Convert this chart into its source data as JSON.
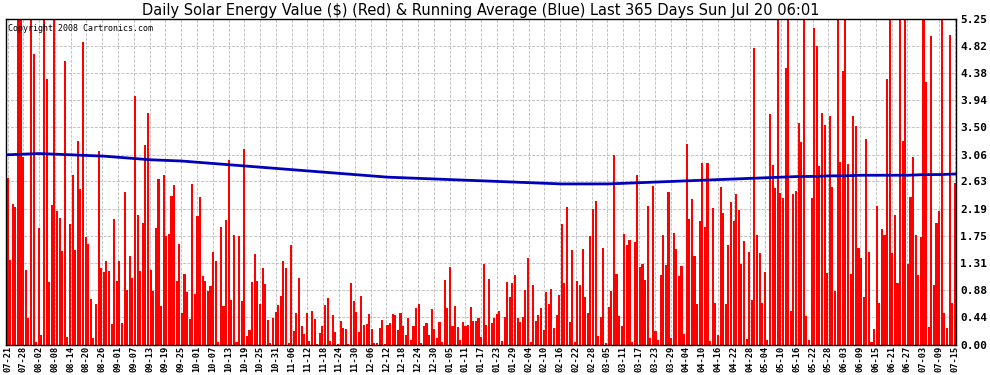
{
  "title": "Daily Solar Energy Value ($) (Red) & Running Average (Blue) Last 365 Days Sun Jul 20 06:01",
  "copyright_text": "Copyright 2008 Cartronics.com",
  "y_ticks": [
    0.0,
    0.44,
    0.88,
    1.31,
    1.75,
    2.19,
    2.63,
    3.06,
    3.5,
    3.94,
    4.38,
    4.82,
    5.25
  ],
  "y_max": 5.25,
  "bar_color": "#ff0000",
  "avg_color": "#0000bb",
  "background_color": "#ffffff",
  "grid_color": "#aaaaaa",
  "title_fontsize": 10.5,
  "x_labels": [
    "07-21",
    "07-28",
    "08-02",
    "08-08",
    "08-14",
    "08-20",
    "08-26",
    "09-01",
    "09-07",
    "09-13",
    "09-19",
    "09-25",
    "10-01",
    "10-07",
    "10-13",
    "10-19",
    "10-25",
    "10-31",
    "11-06",
    "11-12",
    "11-18",
    "11-24",
    "11-30",
    "12-06",
    "12-12",
    "12-18",
    "12-24",
    "12-30",
    "01-05",
    "01-11",
    "01-17",
    "01-23",
    "01-29",
    "02-04",
    "02-10",
    "02-16",
    "02-22",
    "02-28",
    "03-05",
    "03-11",
    "03-17",
    "03-23",
    "03-29",
    "04-04",
    "04-10",
    "04-16",
    "04-22",
    "04-28",
    "05-04",
    "05-10",
    "05-16",
    "05-22",
    "05-28",
    "06-03",
    "06-09",
    "06-15",
    "06-21",
    "06-27",
    "07-03",
    "07-09",
    "07-15"
  ],
  "avg_points": [
    3.06,
    3.07,
    3.08,
    3.07,
    3.06,
    3.05,
    3.04,
    3.02,
    3.0,
    2.98,
    2.97,
    2.96,
    2.94,
    2.92,
    2.9,
    2.88,
    2.86,
    2.84,
    2.82,
    2.8,
    2.78,
    2.76,
    2.74,
    2.72,
    2.7,
    2.69,
    2.68,
    2.67,
    2.66,
    2.65,
    2.64,
    2.63,
    2.62,
    2.61,
    2.6,
    2.59,
    2.59,
    2.59,
    2.59,
    2.6,
    2.61,
    2.62,
    2.63,
    2.64,
    2.65,
    2.66,
    2.67,
    2.68,
    2.69,
    2.7,
    2.71,
    2.71,
    2.72,
    2.72,
    2.73,
    2.73,
    2.73,
    2.73,
    2.74,
    2.74,
    2.75
  ]
}
